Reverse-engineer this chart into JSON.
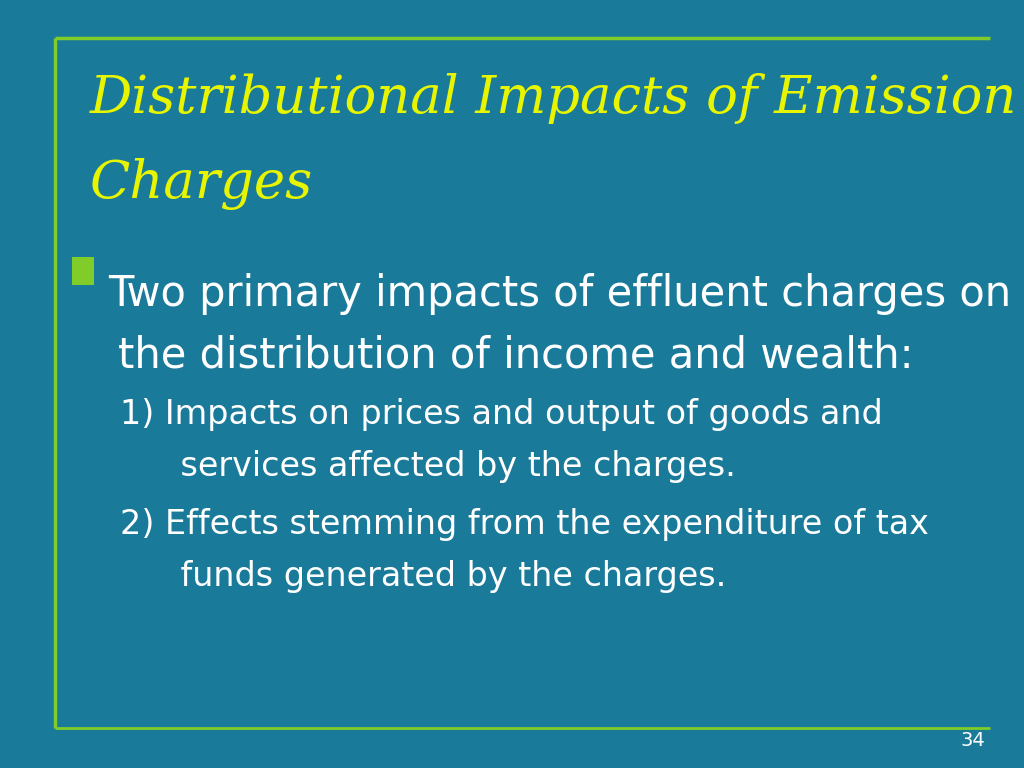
{
  "background_color": "#1a7a9a",
  "border_color": "#80cc28",
  "title_line1": "Distributional Impacts of Emission",
  "title_line2": "Charges",
  "title_color": "#e8f500",
  "title_fontsize": 38,
  "bullet_color": "#80cc28",
  "bullet_text_line1": "Two primary impacts of effluent charges on",
  "bullet_text_line2": "the distribution of income and wealth:",
  "bullet_fontsize": 30,
  "bullet_text_color": "#ffffff",
  "sub_item1_line1": "1) Impacts on prices and output of goods and",
  "sub_item1_line2": "    services affected by the charges.",
  "sub_item2_line1": "2) Effects stemming from the expenditure of tax",
  "sub_item2_line2": "    funds generated by the charges.",
  "sub_fontsize": 24,
  "sub_text_color": "#ffffff",
  "footer_line_color": "#80cc28",
  "page_number": "34",
  "page_number_color": "#ffffff",
  "page_number_fontsize": 14
}
